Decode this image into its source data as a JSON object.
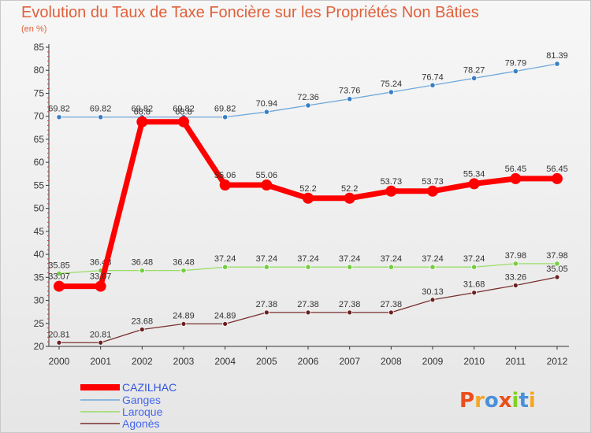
{
  "chart_data": {
    "type": "line",
    "title": "Evolution du Taux de Taxe Foncière sur les Propriétés Non Bâties",
    "subtitle": "(en %)",
    "xlabel": "",
    "ylabel": "",
    "x": [
      "2000",
      "2001",
      "2002",
      "2003",
      "2004",
      "2005",
      "2006",
      "2007",
      "2008",
      "2009",
      "2010",
      "2011",
      "2012"
    ],
    "ylim": [
      20,
      85
    ],
    "yticks": [
      20,
      25,
      30,
      35,
      40,
      45,
      50,
      55,
      60,
      65,
      70,
      75,
      80,
      85
    ],
    "grid": false,
    "legend_position": "bottom-left",
    "series": [
      {
        "name": "CAZILHAC",
        "color": "#ff0000",
        "values": [
          33.07,
          33.07,
          68.8,
          68.8,
          55.06,
          55.06,
          52.2,
          52.2,
          53.73,
          53.73,
          55.34,
          56.45,
          56.45
        ],
        "labels": [
          "33.07",
          "33.07",
          "68.8",
          "68.8",
          "55.06",
          "55.06",
          "52.2",
          "52.2",
          "53.73",
          "53.73",
          "55.34",
          "56.45",
          "56.45"
        ]
      },
      {
        "name": "Ganges",
        "color": "#6fa8dc",
        "values": [
          69.82,
          69.82,
          69.82,
          69.82,
          69.82,
          70.94,
          72.36,
          73.76,
          75.24,
          76.74,
          78.27,
          79.79,
          81.39
        ],
        "labels": [
          "69.82",
          "69.82",
          "69.82",
          "69.82",
          "69.82",
          "70.94",
          "72.36",
          "73.76",
          "75.24",
          "76.74",
          "78.27",
          "79.79",
          "81.39"
        ]
      },
      {
        "name": "Laroque",
        "color": "#99dd66",
        "values": [
          35.85,
          36.48,
          36.48,
          36.48,
          37.24,
          37.24,
          37.24,
          37.24,
          37.24,
          37.24,
          37.24,
          37.98,
          37.98
        ],
        "labels": [
          "35.85",
          "36.48",
          "36.48",
          "36.48",
          "37.24",
          "37.24",
          "37.24",
          "37.24",
          "37.24",
          "37.24",
          "37.24",
          "37.98",
          "37.98"
        ]
      },
      {
        "name": "Agonès",
        "color": "#7a2e2e",
        "values": [
          20.81,
          20.81,
          23.68,
          24.89,
          24.89,
          27.38,
          27.38,
          27.38,
          27.38,
          30.13,
          31.68,
          33.26,
          35.05
        ],
        "labels": [
          "20.81",
          "20.81",
          "23.68",
          "24.89",
          "24.89",
          "27.38",
          "27.38",
          "27.38",
          "27.38",
          "30.13",
          "31.68",
          "33.26",
          "35.05"
        ]
      }
    ]
  },
  "logo": {
    "letters": [
      "P",
      "r",
      "o",
      "x",
      "i",
      "t",
      "i"
    ],
    "colors": [
      "#e94e1b",
      "#f5a623",
      "#4a90d9",
      "#e94e1b",
      "#7ed321",
      "#4a90d9",
      "#f5a623"
    ]
  }
}
